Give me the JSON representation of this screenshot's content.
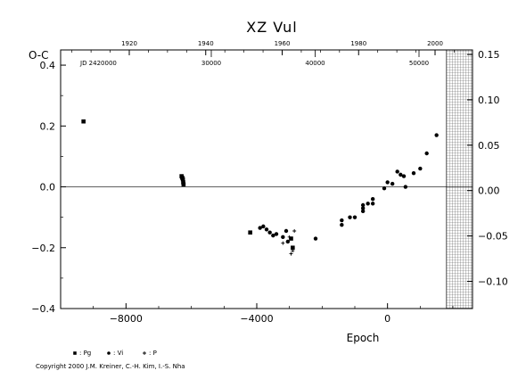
{
  "chart_data": {
    "type": "scatter",
    "title": "XZ Vul",
    "ylabel": "O-C",
    "xlabel": "Epoch",
    "jd_label": "JD 2420000",
    "xlim": [
      -10000,
      2600
    ],
    "ylim": [
      -0.4,
      0.45
    ],
    "right_ylim": [
      -0.13,
      0.155
    ],
    "x_ticks": [
      -8000,
      -4000,
      0
    ],
    "y_ticks": [
      -0.4,
      -0.2,
      0.0,
      0.2,
      0.4
    ],
    "right_ticks": [
      -0.1,
      -0.05,
      0.0,
      0.05,
      0.1,
      0.15
    ],
    "top_year_ticks": [
      1920,
      1940,
      1960,
      1980,
      2000
    ],
    "jd_ticks": [
      30000,
      40000,
      50000
    ],
    "zero_line": true,
    "future_shaded_from_epoch": 1800,
    "series": [
      {
        "name": ": Pg",
        "marker": "square",
        "points": [
          {
            "x": -9300,
            "y": 0.215
          },
          {
            "x": -6300,
            "y": 0.035
          },
          {
            "x": -6280,
            "y": 0.03
          },
          {
            "x": -6260,
            "y": 0.025
          },
          {
            "x": -6250,
            "y": 0.015
          },
          {
            "x": -6240,
            "y": 0.008
          },
          {
            "x": -4200,
            "y": -0.15
          },
          {
            "x": -2900,
            "y": -0.2
          },
          {
            "x": -2950,
            "y": -0.17
          }
        ]
      },
      {
        "name": ": Vi",
        "marker": "circle",
        "points": [
          {
            "x": -3900,
            "y": -0.135
          },
          {
            "x": -3800,
            "y": -0.13
          },
          {
            "x": -3700,
            "y": -0.14
          },
          {
            "x": -3600,
            "y": -0.15
          },
          {
            "x": -3500,
            "y": -0.16
          },
          {
            "x": -3400,
            "y": -0.155
          },
          {
            "x": -3200,
            "y": -0.165
          },
          {
            "x": -3100,
            "y": -0.145
          },
          {
            "x": -3050,
            "y": -0.18
          },
          {
            "x": -2200,
            "y": -0.17
          },
          {
            "x": -1400,
            "y": -0.125
          },
          {
            "x": -1400,
            "y": -0.11
          },
          {
            "x": -1150,
            "y": -0.1
          },
          {
            "x": -1000,
            "y": -0.1
          },
          {
            "x": -750,
            "y": -0.06
          },
          {
            "x": -750,
            "y": -0.07
          },
          {
            "x": -750,
            "y": -0.08
          },
          {
            "x": -600,
            "y": -0.055
          },
          {
            "x": -450,
            "y": -0.04
          },
          {
            "x": -450,
            "y": -0.055
          },
          {
            "x": -100,
            "y": -0.005
          },
          {
            "x": 0,
            "y": 0.015
          },
          {
            "x": 150,
            "y": 0.01
          },
          {
            "x": 300,
            "y": 0.05
          },
          {
            "x": 400,
            "y": 0.04
          },
          {
            "x": 500,
            "y": 0.035
          },
          {
            "x": 550,
            "y": 0.0
          },
          {
            "x": 800,
            "y": 0.045
          },
          {
            "x": 1000,
            "y": 0.06
          },
          {
            "x": 1200,
            "y": 0.11
          },
          {
            "x": 1500,
            "y": 0.17
          }
        ]
      },
      {
        "name": ": P",
        "marker": "plus",
        "points": [
          {
            "x": -3200,
            "y": -0.185
          },
          {
            "x": -3000,
            "y": -0.165
          },
          {
            "x": -2900,
            "y": -0.21
          },
          {
            "x": -2850,
            "y": -0.145
          },
          {
            "x": -2950,
            "y": -0.22
          }
        ]
      }
    ],
    "legend_placement": "bottom-left"
  },
  "copyright": "Copyright 2000 J.M. Kreiner, C.-H. Kim, I.-S. Nha"
}
